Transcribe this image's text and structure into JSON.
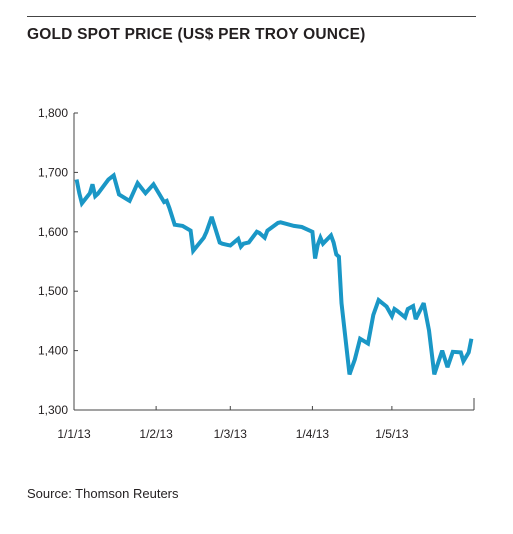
{
  "title": "GOLD SPOT PRICE (US$ PER TROY OUNCE)",
  "source": "Source: Thomson Reuters",
  "colors": {
    "line": "#1a97c6",
    "axis": "#444444",
    "text": "#231f20"
  },
  "chart_data": {
    "type": "line",
    "title": "GOLD SPOT PRICE (US$ PER TROY OUNCE)",
    "xlabel": "",
    "ylabel": "",
    "ylim": [
      1300,
      1800
    ],
    "yticks": [
      "1,300",
      "1,400",
      "1,500",
      "1,600",
      "1,700",
      "1,800"
    ],
    "ytick_values": [
      1300,
      1400,
      1500,
      1600,
      1700,
      1800
    ],
    "xticks": [
      "1/1/13",
      "1/2/13",
      "1/3/13",
      "1/4/13",
      "1/5/13"
    ],
    "xtick_values": [
      "2013-01-01",
      "2013-02-01",
      "2013-03-01",
      "2013-04-01",
      "2013-05-01"
    ],
    "xlim": [
      "2013-01-01",
      "2013-06-01"
    ],
    "grid": false,
    "legend": "none",
    "series": [
      {
        "x": [
          "2013-01-02",
          "2013-01-03",
          "2013-01-04",
          "2013-01-07",
          "2013-01-08",
          "2013-01-09",
          "2013-01-10",
          "2013-01-11",
          "2013-01-14",
          "2013-01-16",
          "2013-01-18",
          "2013-01-22",
          "2013-01-25",
          "2013-01-28",
          "2013-01-31",
          "2013-02-04",
          "2013-02-05",
          "2013-02-06",
          "2013-02-08",
          "2013-02-11",
          "2013-02-14",
          "2013-02-15",
          "2013-02-19",
          "2013-02-20",
          "2013-02-22",
          "2013-02-25",
          "2013-02-26",
          "2013-02-28",
          "2013-03-01",
          "2013-03-04",
          "2013-03-05",
          "2013-03-06",
          "2013-03-08",
          "2013-03-11",
          "2013-03-12",
          "2013-03-14",
          "2013-03-15",
          "2013-03-19",
          "2013-03-20",
          "2013-03-25",
          "2013-03-28",
          "2013-04-01",
          "2013-04-02",
          "2013-04-03",
          "2013-04-04",
          "2013-04-05",
          "2013-04-08",
          "2013-04-09",
          "2013-04-10",
          "2013-04-11",
          "2013-04-12",
          "2013-04-15",
          "2013-04-17",
          "2013-04-19",
          "2013-04-22",
          "2013-04-24",
          "2013-04-26",
          "2013-04-29",
          "2013-05-01",
          "2013-05-02",
          "2013-05-03",
          "2013-05-06",
          "2013-05-07",
          "2013-05-09",
          "2013-05-10",
          "2013-05-13",
          "2013-05-15",
          "2013-05-17",
          "2013-05-20",
          "2013-05-22",
          "2013-05-24",
          "2013-05-27",
          "2013-05-28",
          "2013-05-30",
          "2013-05-31"
        ],
        "y": [
          1688,
          1665,
          1648,
          1665,
          1680,
          1660,
          1664,
          1670,
          1688,
          1695,
          1663,
          1652,
          1682,
          1665,
          1680,
          1650,
          1652,
          1640,
          1612,
          1610,
          1602,
          1568,
          1590,
          1600,
          1625,
          1582,
          1580,
          1578,
          1577,
          1588,
          1575,
          1580,
          1582,
          1600,
          1598,
          1590,
          1602,
          1615,
          1616,
          1610,
          1608,
          1600,
          1555,
          1578,
          1590,
          1580,
          1594,
          1582,
          1562,
          1558,
          1480,
          1360,
          1385,
          1420,
          1412,
          1460,
          1485,
          1474,
          1458,
          1470,
          1467,
          1456,
          1470,
          1475,
          1453,
          1480,
          1434,
          1360,
          1400,
          1372,
          1398,
          1397,
          1382,
          1397,
          1420
        ]
      }
    ]
  }
}
